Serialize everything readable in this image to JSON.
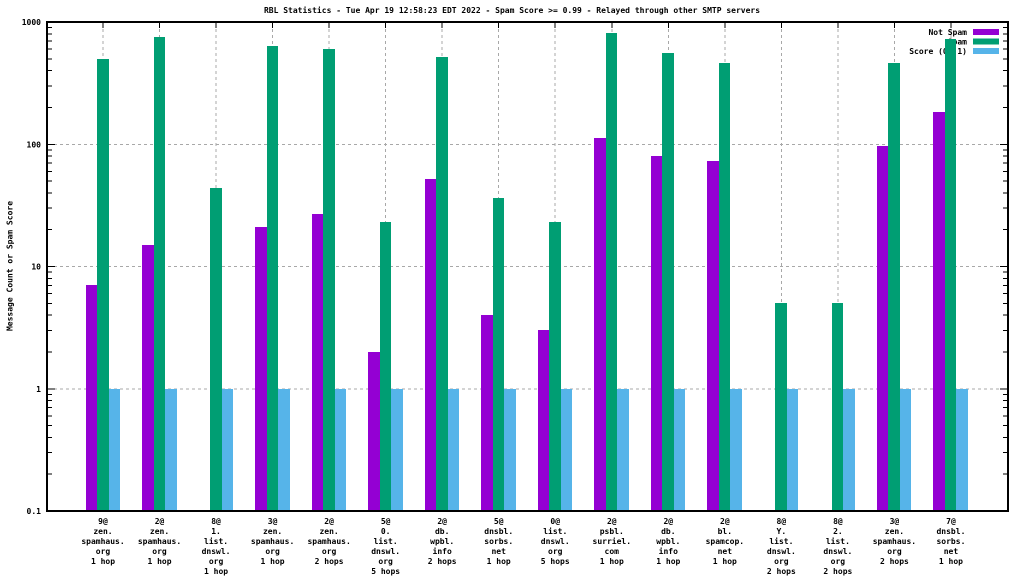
{
  "chart_data": {
    "type": "bar",
    "title": "RBL Statistics - Tue Apr 19 12:58:23 EDT 2022 - Spam Score >= 0.99 - Relayed through other SMTP servers",
    "ylabel": "Message Count or Spam Score",
    "yscale": "log",
    "ylim": [
      0.1,
      1000
    ],
    "yticks": [
      1000,
      100,
      10,
      1,
      0.1
    ],
    "ytick_labels": [
      "1000",
      "100",
      "10",
      "1",
      "0.1"
    ],
    "grid_decades": [
      1,
      10,
      100
    ],
    "grid_on": true,
    "legend_position": "top-right-inside",
    "categories": [
      [
        "9@",
        "zen.",
        "spamhaus.",
        "org",
        "1 hop"
      ],
      [
        "2@",
        "zen.",
        "spamhaus.",
        "org",
        "1 hop"
      ],
      [
        "8@",
        "1.",
        "list.",
        "dnswl.",
        "org",
        "1 hop"
      ],
      [
        "3@",
        "zen.",
        "spamhaus.",
        "org",
        "1 hop"
      ],
      [
        "2@",
        "zen.",
        "spamhaus.",
        "org",
        "2 hops"
      ],
      [
        "5@",
        "0.",
        "list.",
        "dnswl.",
        "org",
        "5 hops"
      ],
      [
        "2@",
        "db.",
        "wpbl.",
        "info",
        "2 hops"
      ],
      [
        "5@",
        "dnsbl.",
        "sorbs.",
        "net",
        "1 hop"
      ],
      [
        "0@",
        "list.",
        "dnswl.",
        "org",
        "5 hops"
      ],
      [
        "2@",
        "psbl.",
        "surriel.",
        "com",
        "1 hop"
      ],
      [
        "2@",
        "db.",
        "wpbl.",
        "info",
        "1 hop"
      ],
      [
        "2@",
        "bl.",
        "spamcop.",
        "net",
        "1 hop"
      ],
      [
        "8@",
        "Y.",
        "list.",
        "dnswl.",
        "org",
        "2 hops"
      ],
      [
        "8@",
        "2.",
        "list.",
        "dnswl.",
        "org",
        "2 hops"
      ],
      [
        "3@",
        "zen.",
        "spamhaus.",
        "org",
        "2 hops"
      ],
      [
        "7@",
        "dnsbl.",
        "sorbs.",
        "net",
        "1 hop"
      ]
    ],
    "series": [
      {
        "name": "Not Spam",
        "color": "#9400d3",
        "values": [
          7,
          15,
          null,
          21,
          27,
          2,
          52,
          4,
          3,
          112,
          80,
          73,
          null,
          null,
          96,
          185
        ]
      },
      {
        "name": "Spam",
        "color": "#009e73",
        "values": [
          500,
          750,
          44,
          640,
          600,
          23,
          520,
          36,
          23,
          810,
          560,
          460,
          5,
          5,
          460,
          720
        ]
      },
      {
        "name": "Score (0..1)",
        "color": "#56b4e9",
        "values": [
          1,
          1,
          1,
          1,
          1,
          1,
          1,
          1,
          1,
          1,
          1,
          1,
          1,
          1,
          1,
          1
        ]
      }
    ],
    "colors": {
      "grid": "#a8a8a8",
      "border": "#000000",
      "text": "#000000",
      "background": "#ffffff"
    }
  }
}
